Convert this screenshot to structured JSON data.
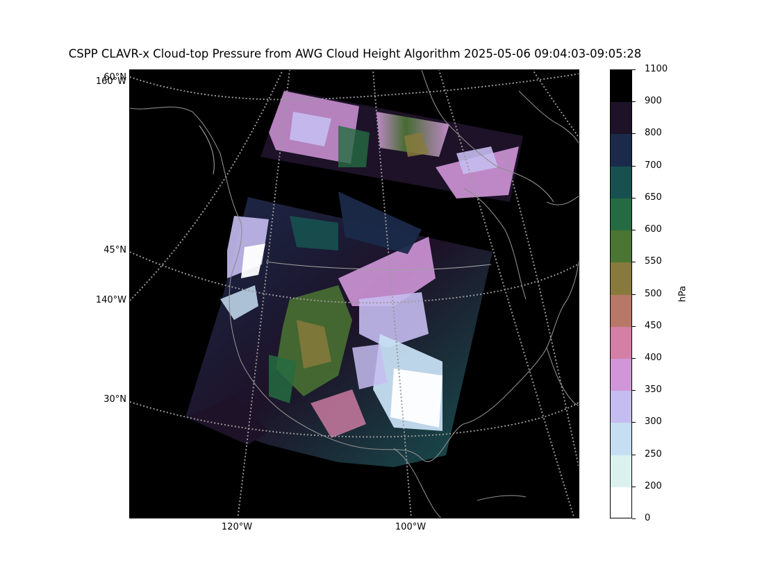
{
  "title": "CSPP CLAVR-x Cloud-top Pressure from AWG Cloud Height Algorithm 2025-05-06 09:04:03-09:05:28",
  "map": {
    "lat_labels": [
      "60°N",
      "45°N",
      "30°N"
    ],
    "left_lon_labels": [
      "160°W",
      "140°W"
    ],
    "bottom_lon_labels": [
      "120°W",
      "100°W"
    ],
    "graticule_color": "#9a9a9a",
    "coastline_color": "#8c8c8c",
    "background_color": "#000000"
  },
  "colorbar": {
    "unit": "hPa",
    "tick_labels": [
      "1100",
      "900",
      "800",
      "700",
      "650",
      "600",
      "550",
      "500",
      "450",
      "400",
      "350",
      "300",
      "250",
      "200",
      "0"
    ],
    "segment_colors": [
      "#000000",
      "#1d1228",
      "#1b2a4a",
      "#17514f",
      "#256b41",
      "#4b7533",
      "#877a3c",
      "#b87868",
      "#d47fa6",
      "#d096d8",
      "#c5bcf0",
      "#c6def2",
      "#dbf1ee",
      "#ffffff"
    ]
  }
}
